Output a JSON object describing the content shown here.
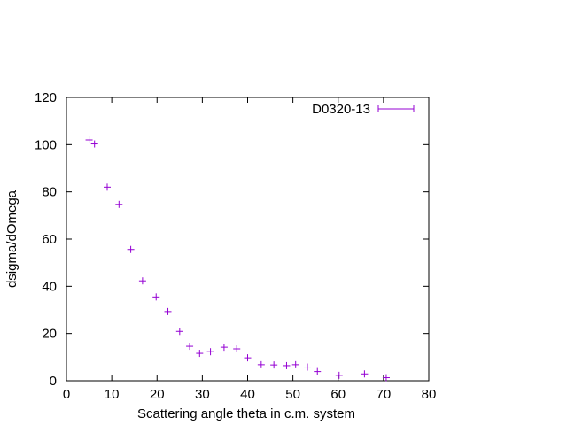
{
  "chart_data": {
    "type": "scatter",
    "xlabel": "Scattering angle theta in c.m. system",
    "ylabel": "dsigma/dOmega",
    "xlim": [
      0,
      80
    ],
    "ylim": [
      0,
      120
    ],
    "xticks": [
      "0",
      "10",
      "20",
      "30",
      "40",
      "50",
      "60",
      "70",
      "80"
    ],
    "yticks": [
      "0",
      "20",
      "40",
      "60",
      "80",
      "100",
      "120"
    ],
    "grid": false,
    "legend_position": "top-right",
    "series": [
      {
        "name": "D0320-13",
        "color": "#9400d3",
        "marker": "plus-with-errorbars",
        "x": [
          5.0,
          6.2,
          9.0,
          11.6,
          14.2,
          16.8,
          19.8,
          22.4,
          25.0,
          27.2,
          29.4,
          31.8,
          34.8,
          37.6,
          40.0,
          43.0,
          45.8,
          48.6,
          50.6,
          53.2,
          55.4,
          60.2,
          65.8,
          70.6
        ],
        "y": [
          102.0,
          100.3,
          82.0,
          74.7,
          55.6,
          42.3,
          35.5,
          29.3,
          20.9,
          14.6,
          11.6,
          12.3,
          14.2,
          13.5,
          9.7,
          6.8,
          6.7,
          6.4,
          6.8,
          5.8,
          3.9,
          2.3,
          2.9,
          1.3
        ]
      }
    ]
  }
}
